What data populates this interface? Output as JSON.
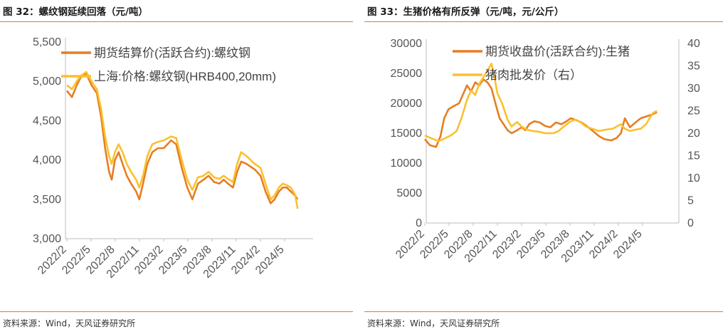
{
  "colors": {
    "orange": "#e67e22",
    "yellow": "#fbc02d",
    "rule": "#e07b1f",
    "axis": "#bdbdbd"
  },
  "left": {
    "title": "图 32：螺纹钢延续回落（元/吨）",
    "source": "资料来源：Wind，天风证券研究所"
  },
  "right": {
    "title": "图 33：生猪价格有所反弹（元/吨，元/公斤）",
    "source": "资料来源：Wind，天风证券研究所"
  },
  "chart_data": [
    {
      "type": "line",
      "title": "螺纹钢延续回落（元/吨）",
      "x_ticks": [
        "2022/2",
        "2022/5",
        "2022/8",
        "2022/11",
        "2023/2",
        "2023/5",
        "2023/8",
        "2023/11",
        "2024/2",
        "2024/5"
      ],
      "y_ticks": [
        "3,000",
        "3,500",
        "4,000",
        "4,500",
        "5,000",
        "5,500"
      ],
      "ylim": [
        3000,
        5500
      ],
      "legend_position": "top-left",
      "series": [
        {
          "name": "期货结算价(活跃合约):螺纹钢",
          "color": "#e67e22",
          "axis": "left",
          "points": [
            [
              "2022-02-01",
              4880
            ],
            [
              "2022-02-20",
              4800
            ],
            [
              "2022-03-10",
              4950
            ],
            [
              "2022-03-25",
              5050
            ],
            [
              "2022-04-15",
              5100
            ],
            [
              "2022-05-05",
              4950
            ],
            [
              "2022-05-25",
              4850
            ],
            [
              "2022-06-10",
              4550
            ],
            [
              "2022-06-25",
              4150
            ],
            [
              "2022-07-10",
              3850
            ],
            [
              "2022-07-20",
              3750
            ],
            [
              "2022-08-01",
              4000
            ],
            [
              "2022-08-15",
              4100
            ],
            [
              "2022-08-30",
              3950
            ],
            [
              "2022-09-15",
              3800
            ],
            [
              "2022-10-01",
              3700
            ],
            [
              "2022-10-20",
              3600
            ],
            [
              "2022-11-01",
              3500
            ],
            [
              "2022-11-15",
              3700
            ],
            [
              "2022-12-01",
              3950
            ],
            [
              "2022-12-20",
              4100
            ],
            [
              "2023-01-10",
              4150
            ],
            [
              "2023-02-01",
              4150
            ],
            [
              "2023-03-01",
              4250
            ],
            [
              "2023-03-20",
              4200
            ],
            [
              "2023-04-10",
              3900
            ],
            [
              "2023-05-01",
              3650
            ],
            [
              "2023-05-20",
              3500
            ],
            [
              "2023-06-10",
              3700
            ],
            [
              "2023-07-01",
              3750
            ],
            [
              "2023-07-20",
              3800
            ],
            [
              "2023-08-10",
              3720
            ],
            [
              "2023-08-30",
              3700
            ],
            [
              "2023-09-15",
              3750
            ],
            [
              "2023-10-01",
              3700
            ],
            [
              "2023-10-20",
              3650
            ],
            [
              "2023-11-05",
              3850
            ],
            [
              "2023-11-20",
              3980
            ],
            [
              "2023-12-10",
              3950
            ],
            [
              "2024-01-10",
              3880
            ],
            [
              "2024-02-01",
              3800
            ],
            [
              "2024-02-20",
              3600
            ],
            [
              "2024-03-10",
              3450
            ],
            [
              "2024-03-25",
              3500
            ],
            [
              "2024-04-10",
              3600
            ],
            [
              "2024-04-25",
              3650
            ],
            [
              "2024-05-10",
              3650
            ],
            [
              "2024-05-25",
              3600
            ],
            [
              "2024-06-10",
              3550
            ],
            [
              "2024-06-20",
              3500
            ]
          ]
        },
        {
          "name": "上海:价格:螺纹钢(HRB400,20mm)",
          "color": "#fbc02d",
          "axis": "left",
          "points": [
            [
              "2022-02-01",
              4950
            ],
            [
              "2022-02-20",
              4900
            ],
            [
              "2022-03-10",
              5000
            ],
            [
              "2022-03-25",
              5070
            ],
            [
              "2022-04-15",
              5120
            ],
            [
              "2022-05-05",
              5000
            ],
            [
              "2022-05-25",
              4900
            ],
            [
              "2022-06-10",
              4650
            ],
            [
              "2022-06-25",
              4300
            ],
            [
              "2022-07-10",
              4050
            ],
            [
              "2022-07-20",
              3950
            ],
            [
              "2022-08-01",
              4100
            ],
            [
              "2022-08-15",
              4200
            ],
            [
              "2022-08-30",
              4100
            ],
            [
              "2022-09-15",
              3950
            ],
            [
              "2022-10-01",
              3850
            ],
            [
              "2022-10-20",
              3750
            ],
            [
              "2022-11-01",
              3650
            ],
            [
              "2022-11-15",
              3800
            ],
            [
              "2022-12-01",
              4050
            ],
            [
              "2022-12-20",
              4200
            ],
            [
              "2023-01-10",
              4230
            ],
            [
              "2023-02-01",
              4250
            ],
            [
              "2023-03-01",
              4300
            ],
            [
              "2023-03-20",
              4280
            ],
            [
              "2023-04-10",
              4000
            ],
            [
              "2023-05-01",
              3750
            ],
            [
              "2023-05-20",
              3620
            ],
            [
              "2023-06-10",
              3780
            ],
            [
              "2023-07-01",
              3800
            ],
            [
              "2023-07-20",
              3850
            ],
            [
              "2023-08-10",
              3780
            ],
            [
              "2023-08-30",
              3760
            ],
            [
              "2023-09-15",
              3800
            ],
            [
              "2023-10-01",
              3760
            ],
            [
              "2023-10-20",
              3720
            ],
            [
              "2023-11-05",
              3950
            ],
            [
              "2023-11-20",
              4100
            ],
            [
              "2023-12-10",
              4050
            ],
            [
              "2024-01-10",
              3950
            ],
            [
              "2024-02-01",
              3900
            ],
            [
              "2024-02-20",
              3700
            ],
            [
              "2024-03-10",
              3500
            ],
            [
              "2024-03-25",
              3550
            ],
            [
              "2024-04-10",
              3650
            ],
            [
              "2024-04-25",
              3700
            ],
            [
              "2024-05-10",
              3680
            ],
            [
              "2024-05-25",
              3650
            ],
            [
              "2024-06-10",
              3560
            ],
            [
              "2024-06-20",
              3380
            ]
          ]
        }
      ]
    },
    {
      "type": "line",
      "title": "生猪价格有所反弹（元/吨，元/公斤）",
      "x_ticks": [
        "2022/2",
        "2022/5",
        "2022/8",
        "2022/11",
        "2023/2",
        "2023/5",
        "2023/8",
        "2023/11",
        "2024/2",
        "2024/5"
      ],
      "y_ticks": [
        "0",
        "5000",
        "10000",
        "15000",
        "20000",
        "25000",
        "30000"
      ],
      "y2_ticks": [
        "0",
        "5",
        "10",
        "15",
        "20",
        "25",
        "30",
        "35",
        "40"
      ],
      "ylim": [
        0,
        30000
      ],
      "y2lim": [
        0,
        40
      ],
      "legend_position": "top-left",
      "series": [
        {
          "name": "期货收盘价(活跃合约):生猪",
          "color": "#e67e22",
          "axis": "left",
          "points": [
            [
              "2022-02-01",
              14000
            ],
            [
              "2022-02-20",
              13000
            ],
            [
              "2022-03-15",
              12700
            ],
            [
              "2022-04-01",
              14500
            ],
            [
              "2022-04-15",
              17500
            ],
            [
              "2022-05-01",
              19000
            ],
            [
              "2022-05-20",
              19500
            ],
            [
              "2022-06-10",
              20000
            ],
            [
              "2022-06-25",
              21500
            ],
            [
              "2022-07-10",
              23000
            ],
            [
              "2022-07-25",
              22000
            ],
            [
              "2022-08-10",
              23500
            ],
            [
              "2022-08-25",
              23000
            ],
            [
              "2022-09-10",
              24000
            ],
            [
              "2022-09-25",
              23500
            ],
            [
              "2022-10-10",
              22500
            ],
            [
              "2022-10-25",
              20000
            ],
            [
              "2022-11-10",
              17500
            ],
            [
              "2022-11-25",
              16500
            ],
            [
              "2022-12-10",
              15500
            ],
            [
              "2022-12-25",
              15000
            ],
            [
              "2023-01-15",
              15500
            ],
            [
              "2023-02-01",
              16000
            ],
            [
              "2023-02-15",
              15500
            ],
            [
              "2023-03-01",
              16500
            ],
            [
              "2023-03-20",
              17000
            ],
            [
              "2023-04-10",
              16800
            ],
            [
              "2023-05-01",
              16200
            ],
            [
              "2023-05-20",
              16000
            ],
            [
              "2023-06-10",
              16800
            ],
            [
              "2023-07-01",
              16500
            ],
            [
              "2023-07-20",
              17000
            ],
            [
              "2023-08-05",
              17500
            ],
            [
              "2023-08-25",
              17200
            ],
            [
              "2023-09-15",
              16800
            ],
            [
              "2023-10-10",
              16000
            ],
            [
              "2023-11-01",
              15200
            ],
            [
              "2023-11-20",
              14500
            ],
            [
              "2023-12-10",
              14000
            ],
            [
              "2024-01-05",
              13800
            ],
            [
              "2024-01-25",
              14200
            ],
            [
              "2024-02-10",
              15000
            ],
            [
              "2024-02-25",
              17500
            ],
            [
              "2024-03-15",
              16000
            ],
            [
              "2024-04-05",
              16800
            ],
            [
              "2024-04-25",
              17500
            ],
            [
              "2024-05-15",
              17800
            ],
            [
              "2024-05-30",
              18000
            ],
            [
              "2024-06-10",
              18200
            ],
            [
              "2024-06-25",
              18500
            ]
          ]
        },
        {
          "name": "猪肉批发价（右）",
          "color": "#fbc02d",
          "axis": "right",
          "points": [
            [
              "2022-02-01",
              19.5
            ],
            [
              "2022-03-01",
              18.8
            ],
            [
              "2022-03-25",
              18.2
            ],
            [
              "2022-04-15",
              18.8
            ],
            [
              "2022-05-10",
              19.5
            ],
            [
              "2022-06-01",
              20.5
            ],
            [
              "2022-06-20",
              23.5
            ],
            [
              "2022-07-10",
              27.5
            ],
            [
              "2022-07-25",
              29.5
            ],
            [
              "2022-08-10",
              28.5
            ],
            [
              "2022-08-25",
              31
            ],
            [
              "2022-09-10",
              32.5
            ],
            [
              "2022-09-25",
              34
            ],
            [
              "2022-10-10",
              35.5
            ],
            [
              "2022-10-20",
              33
            ],
            [
              "2022-11-01",
              29
            ],
            [
              "2022-11-20",
              26.5
            ],
            [
              "2022-12-10",
              23
            ],
            [
              "2022-12-25",
              21.5
            ],
            [
              "2023-01-15",
              22.5
            ],
            [
              "2023-02-01",
              21.5
            ],
            [
              "2023-02-20",
              20.8
            ],
            [
              "2023-03-15",
              20.5
            ],
            [
              "2023-04-10",
              20.3
            ],
            [
              "2023-05-01",
              20
            ],
            [
              "2023-06-01",
              20
            ],
            [
              "2023-06-20",
              20.5
            ],
            [
              "2023-07-10",
              21.5
            ],
            [
              "2023-08-01",
              22.5
            ],
            [
              "2023-08-20",
              23
            ],
            [
              "2023-09-10",
              22.5
            ],
            [
              "2023-10-01",
              21.5
            ],
            [
              "2023-10-25",
              21
            ],
            [
              "2023-11-20",
              20.5
            ],
            [
              "2023-12-15",
              20.8
            ],
            [
              "2024-01-10",
              21
            ],
            [
              "2024-01-25",
              21.5
            ],
            [
              "2024-02-10",
              22
            ],
            [
              "2024-02-25",
              21
            ],
            [
              "2024-03-15",
              20.5
            ],
            [
              "2024-04-05",
              20.8
            ],
            [
              "2024-04-25",
              21
            ],
            [
              "2024-05-15",
              22
            ],
            [
              "2024-05-30",
              23.5
            ],
            [
              "2024-06-10",
              24.5
            ],
            [
              "2024-06-25",
              25
            ]
          ]
        }
      ]
    }
  ]
}
